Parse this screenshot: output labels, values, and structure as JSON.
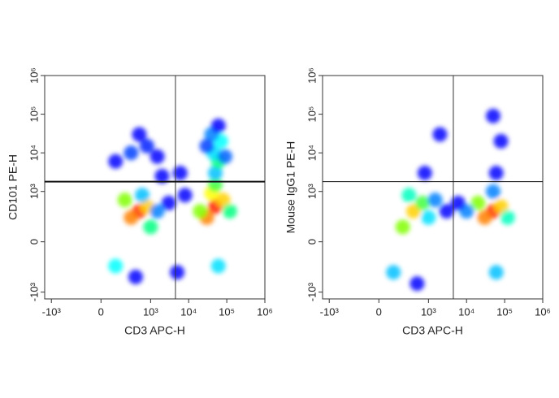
{
  "chart_data": [
    {
      "type": "scatter",
      "xlabel": "CD3 APC-H",
      "ylabel": "CD101 PE-H",
      "xlim": [
        -1500,
        1000000
      ],
      "ylim": [
        -1500,
        1000000
      ],
      "xticks": [
        {
          "value": -1000,
          "label": "-10³"
        },
        0,
        {
          "value": 1000,
          "label": "10³"
        },
        {
          "value": 10000,
          "label": "10⁴"
        },
        {
          "value": 100000,
          "label": "10⁵"
        },
        {
          "value": 1000000,
          "label": "10⁶"
        }
      ],
      "yticks": [
        {
          "value": -1000,
          "label": "-10³"
        },
        0,
        {
          "value": 1000,
          "label": "10³"
        },
        {
          "value": 10000,
          "label": "10⁴"
        },
        {
          "value": 100000,
          "label": "10⁵"
        },
        {
          "value": 1000000,
          "label": "10⁶"
        }
      ],
      "gate_x": 4500,
      "gate_y": 1800,
      "x": [
        500,
        300,
        800,
        200,
        1000,
        600,
        100,
        1500,
        400,
        50000,
        30000,
        80000,
        40000,
        20000,
        120000,
        60000,
        50000,
        50000,
        60000,
        45000,
        70000,
        40000,
        60000,
        30000,
        90000,
        300,
        800,
        100,
        1500,
        500,
        3000,
        8000,
        5000,
        2000,
        6000
      ],
      "y": [
        300,
        200,
        400,
        600,
        100,
        800,
        -200,
        300,
        -400,
        400,
        200,
        600,
        900,
        300,
        300,
        -200,
        1500,
        3000,
        6000,
        10000,
        20000,
        30000,
        50000,
        15000,
        8000,
        10000,
        15000,
        6000,
        8000,
        30000,
        500,
        800,
        -300,
        2500,
        3000
      ],
      "colors": [
        "#ff2000",
        "#ff8000",
        "#ffd000",
        "#80ff00",
        "#00ff80",
        "#00c0ff",
        "#00ffff",
        "#0080ff",
        "#0000ff",
        "#ff2000",
        "#ff8000",
        "#ffd000",
        "#ffff00",
        "#80ff00",
        "#00ff80",
        "#00e0ff",
        "#40ff40",
        "#00c0ff",
        "#00ff80",
        "#00e0ff",
        "#00ffff",
        "#0080ff",
        "#0000ff",
        "#0040ff",
        "#0060ff",
        "#0040ff",
        "#0020ff",
        "#0000ff",
        "#0000ff",
        "#0000ff",
        "#0000ff",
        "#0000ff",
        "#0000ff",
        "#0000ff",
        "#0000ff"
      ]
    },
    {
      "type": "scatter",
      "xlabel": "CD3 APC-H",
      "ylabel": "Mouse IgG1 PE-H",
      "xlim": [
        -1500,
        1000000
      ],
      "ylim": [
        -1500,
        1000000
      ],
      "xticks": [
        {
          "value": -1000,
          "label": "-10³"
        },
        0,
        {
          "value": 1000,
          "label": "10³"
        },
        {
          "value": 10000,
          "label": "10⁴"
        },
        {
          "value": 100000,
          "label": "10⁵"
        },
        {
          "value": 1000000,
          "label": "10⁶"
        }
      ],
      "yticks": [
        {
          "value": -1000,
          "label": "-10³"
        },
        0,
        {
          "value": 1000,
          "label": "10³"
        },
        {
          "value": 10000,
          "label": "10⁴"
        },
        {
          "value": 100000,
          "label": "10⁵"
        },
        {
          "value": 1000000,
          "label": "10⁶"
        }
      ],
      "gate_x": 4500,
      "gate_y": 1800,
      "x": [
        400,
        200,
        700,
        300,
        1000,
        100,
        1500,
        500,
        50000,
        30000,
        80000,
        20000,
        120000,
        60000,
        50000,
        10000,
        3000,
        6000,
        60000,
        80000,
        2000,
        50000,
        800
      ],
      "y": [
        300,
        100,
        500,
        800,
        200,
        -300,
        600,
        -600,
        300,
        200,
        400,
        500,
        200,
        -300,
        1000,
        300,
        300,
        500,
        3000,
        20000,
        30000,
        90000,
        3000
      ],
      "colors": [
        "#ffd000",
        "#80ff00",
        "#40ff40",
        "#00ffc0",
        "#00e0ff",
        "#00c0ff",
        "#0080ff",
        "#0000ff",
        "#ff2000",
        "#ff8000",
        "#ffd000",
        "#80ff00",
        "#00ffc0",
        "#00c0ff",
        "#0080ff",
        "#0080ff",
        "#0000ff",
        "#0000ff",
        "#0000ff",
        "#0000ff",
        "#0000ff",
        "#0000ff",
        "#0000ff"
      ]
    }
  ]
}
